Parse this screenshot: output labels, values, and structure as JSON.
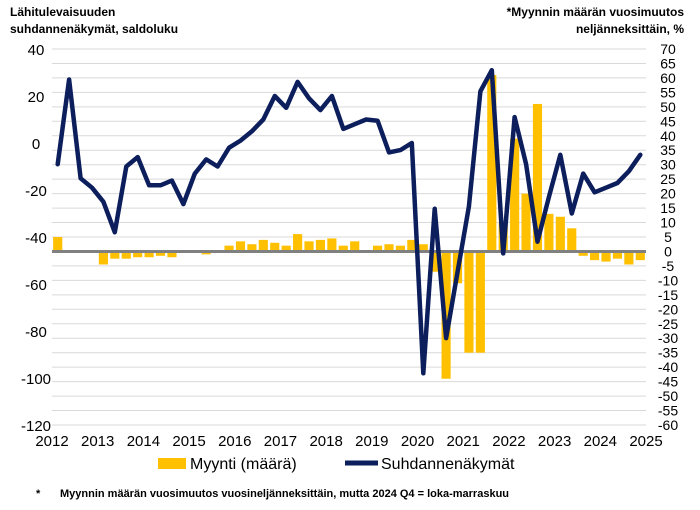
{
  "chart_data": {
    "type": "bar+line",
    "left_axis_title": [
      "Lähitulevaisuuden",
      "suhdannenäkymät, saldoluku"
    ],
    "right_axis_title": [
      "*Myynnin määrän vuosimuutos",
      "neljänneksittäin, %"
    ],
    "footnote_star": "*",
    "footnote": "Myynnin määrän vuosimuutos vuosineljänneksittäin, mutta 2024 Q4 = loka-marraskuu",
    "left_ylim": [
      -120,
      40
    ],
    "left_ticks": [
      "40",
      "20",
      "0",
      "-20",
      "-40",
      "-60",
      "-80",
      "-100",
      "-120"
    ],
    "right_ylim": [
      -60,
      70
    ],
    "right_ticks": [
      "70",
      "65",
      "60",
      "55",
      "50",
      "45",
      "40",
      "35",
      "30",
      "25",
      "20",
      "15",
      "10",
      "5",
      "0",
      "-5",
      "-10",
      "-15",
      "-20",
      "-25",
      "-30",
      "-35",
      "-40",
      "-45",
      "-50",
      "-55",
      "-60"
    ],
    "x_ticks": [
      "2012",
      "2013",
      "2014",
      "2015",
      "2016",
      "2017",
      "2018",
      "2019",
      "2020",
      "2021",
      "2022",
      "2023",
      "2024",
      "2025"
    ],
    "grid": true,
    "legend_position": "bottom-center",
    "colors": {
      "bars": "#FFC000",
      "line": "#0C1E5B",
      "zero_line": "#808080",
      "grid": "#D9D9D9"
    },
    "series": [
      {
        "name": "Myynti (määrä)",
        "kind": "bar",
        "axis": "right",
        "x": [
          2012.0,
          2012.25,
          2012.5,
          2012.75,
          2013.0,
          2013.25,
          2013.5,
          2013.75,
          2014.0,
          2014.25,
          2014.5,
          2014.75,
          2015.0,
          2015.25,
          2015.5,
          2015.75,
          2016.0,
          2016.25,
          2016.5,
          2016.75,
          2017.0,
          2017.25,
          2017.5,
          2017.75,
          2018.0,
          2018.25,
          2018.5,
          2018.75,
          2019.0,
          2019.25,
          2019.5,
          2019.75,
          2020.0,
          2020.25,
          2020.5,
          2020.75,
          2021.0,
          2021.25,
          2021.5,
          2021.75,
          2022.0,
          2022.25,
          2022.5,
          2022.75,
          2023.0,
          2023.25,
          2023.5,
          2023.75,
          2024.0,
          2024.25,
          2024.5,
          2024.75
        ],
        "values": [
          5,
          0,
          0,
          0,
          -4.5,
          -2.5,
          -2.5,
          -2,
          -2,
          -1.5,
          -2,
          0,
          0,
          -1,
          0,
          2,
          3.5,
          2.5,
          4,
          3,
          2,
          6,
          3.5,
          4,
          4.5,
          2,
          3.5,
          0,
          2,
          2.5,
          2,
          4,
          2.5,
          -7,
          -44,
          -11,
          -35,
          -35,
          61,
          10,
          39,
          20,
          51,
          13,
          12,
          8,
          -1.5,
          -3,
          -3.5,
          -2.5,
          -4.5,
          -3
        ]
      },
      {
        "name": "Suhdannenäkymät",
        "kind": "line",
        "axis": "left",
        "x": [
          2012.0,
          2012.25,
          2012.5,
          2012.75,
          2013.0,
          2013.25,
          2013.5,
          2013.75,
          2014.0,
          2014.25,
          2014.5,
          2014.75,
          2015.0,
          2015.25,
          2015.5,
          2015.75,
          2016.0,
          2016.25,
          2016.5,
          2016.75,
          2017.0,
          2017.25,
          2017.5,
          2017.75,
          2018.0,
          2018.25,
          2018.5,
          2018.75,
          2019.0,
          2019.25,
          2019.5,
          2019.75,
          2020.0,
          2020.25,
          2020.5,
          2020.75,
          2021.0,
          2021.25,
          2021.5,
          2021.75,
          2022.0,
          2022.25,
          2022.5,
          2022.75,
          2023.0,
          2023.25,
          2023.5,
          2023.75,
          2024.0,
          2024.25,
          2024.5,
          2024.75
        ],
        "values": [
          -9,
          27,
          -15,
          -19,
          -25,
          -38,
          -10,
          -6,
          -18,
          -18,
          -16,
          -26,
          -13,
          -7,
          -10,
          -2,
          1,
          5,
          10,
          20,
          15,
          26,
          19,
          14,
          20,
          6,
          8,
          10,
          9.5,
          -4,
          -3,
          0,
          -98,
          -28,
          -83,
          -55,
          -27,
          22,
          31,
          -47,
          11,
          -9,
          -42,
          -23,
          -5,
          -30,
          -13,
          -21,
          -19,
          -17,
          -12,
          -5
        ]
      }
    ]
  }
}
